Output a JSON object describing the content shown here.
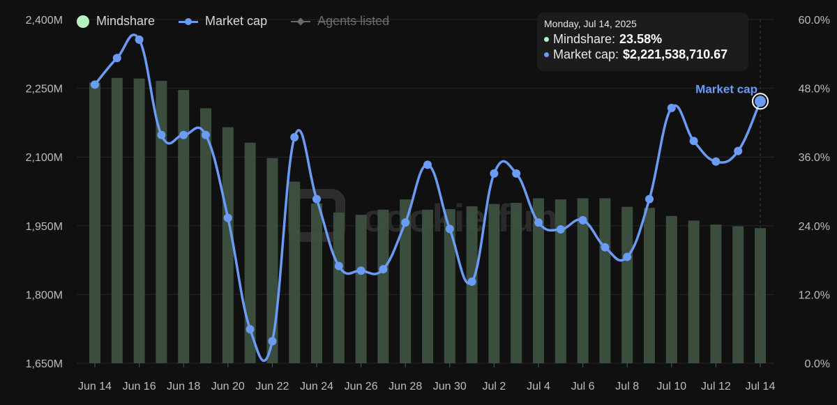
{
  "legend": [
    {
      "label": "Mindshare",
      "type": "dot",
      "color": "#b6f2c0",
      "enabled": true
    },
    {
      "label": "Market cap",
      "type": "line",
      "color": "#6b9cf5",
      "enabled": true
    },
    {
      "label": "Agents listed",
      "type": "line",
      "color": "#6a6a6a",
      "enabled": false
    }
  ],
  "tooltip": {
    "date": "Monday, Jul 14, 2025",
    "rows": [
      {
        "label": "Mindshare:",
        "value": "23.58%",
        "color": "#b6f2c0"
      },
      {
        "label": "Market cap:",
        "value": "$2,221,538,710.67",
        "color": "#6b9cf5"
      }
    ]
  },
  "watermark": "cookie.fun",
  "chart_data": {
    "type": "bar+line",
    "categories": [
      "Jun 14",
      "Jun 15",
      "Jun 16",
      "Jun 17",
      "Jun 18",
      "Jun 19",
      "Jun 20",
      "Jun 21",
      "Jun 22",
      "Jun 23",
      "Jun 24",
      "Jun 25",
      "Jun 26",
      "Jun 27",
      "Jun 28",
      "Jun 29",
      "Jun 30",
      "Jul 1",
      "Jul 2",
      "Jul 3",
      "Jul 4",
      "Jul 5",
      "Jul 6",
      "Jul 7",
      "Jul 8",
      "Jul 9",
      "Jul 10",
      "Jul 11",
      "Jul 12",
      "Jul 13",
      "Jul 14"
    ],
    "x_tick_labels": [
      "Jun 14",
      "Jun 16",
      "Jun 18",
      "Jun 20",
      "Jun 22",
      "Jun 24",
      "Jun 26",
      "Jun 28",
      "Jun 30",
      "Jul 2",
      "Jul 4",
      "Jul 6",
      "Jul 8",
      "Jul 10",
      "Jul 12",
      "Jul 14"
    ],
    "series": [
      {
        "name": "Mindshare",
        "type": "bar",
        "axis": "right",
        "color": "#3f5240",
        "values": [
          49.0,
          49.8,
          49.7,
          49.3,
          47.7,
          44.5,
          41.2,
          38.5,
          35.8,
          31.7,
          27.9,
          26.3,
          25.9,
          26.8,
          28.6,
          26.8,
          26.9,
          27.4,
          27.8,
          28.0,
          28.8,
          28.6,
          28.8,
          28.8,
          27.3,
          27.1,
          25.7,
          24.9,
          24.2,
          23.9,
          23.58
        ]
      },
      {
        "name": "Market cap",
        "type": "line",
        "axis": "left",
        "color": "#6b9cf5",
        "values": [
          2258,
          2316,
          2356,
          2148,
          2148,
          2148,
          1967,
          1724,
          1698,
          2143,
          2008,
          1862,
          1852,
          1855,
          1957,
          2083,
          1943,
          1828,
          2064,
          2064,
          1957,
          1942,
          1962,
          1903,
          1882,
          2008,
          2207,
          2135,
          2090,
          2113,
          2221.54
        ]
      }
    ],
    "y_left": {
      "ticks": [
        "1,650M",
        "1,800M",
        "1,950M",
        "2,100M",
        "2,250M",
        "2,400M"
      ],
      "min": 1650,
      "max": 2400
    },
    "y_right": {
      "ticks": [
        "0.0%",
        "12.0%",
        "24.0%",
        "36.0%",
        "48.0%",
        "60.0%"
      ],
      "min": 0,
      "max": 60
    },
    "annotation": "Market cap",
    "grid": true
  }
}
